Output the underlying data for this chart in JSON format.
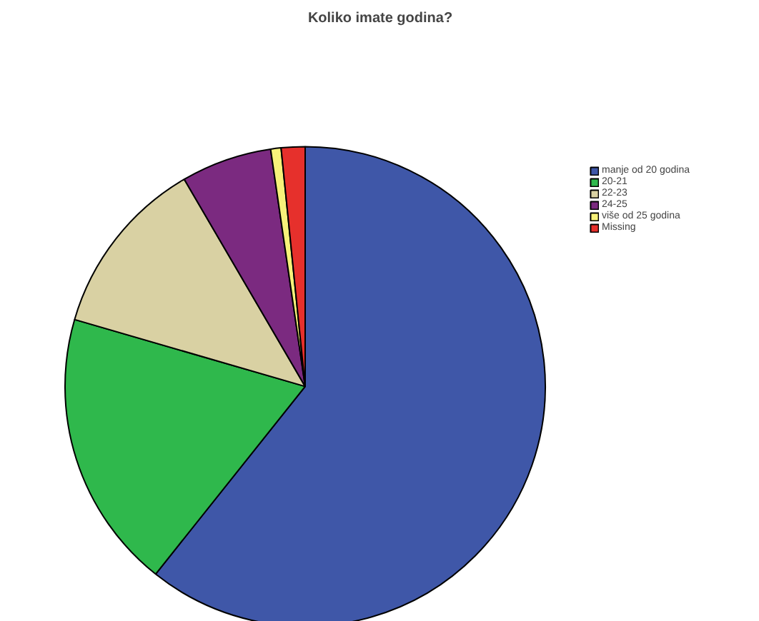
{
  "chart_data": {
    "type": "pie",
    "title": "Koliko imate godina?",
    "categories": [
      "manje od 20 godina",
      "20-21",
      "22-23",
      "24-25",
      "više od 25 godina",
      "Missing"
    ],
    "values": [
      60.7,
      18.8,
      12.1,
      6.1,
      0.7,
      1.6
    ],
    "colors": [
      "#3f57a8",
      "#2fb84c",
      "#d9d1a3",
      "#7b2a80",
      "#f7f27a",
      "#e6302c"
    ],
    "legend": "right"
  }
}
